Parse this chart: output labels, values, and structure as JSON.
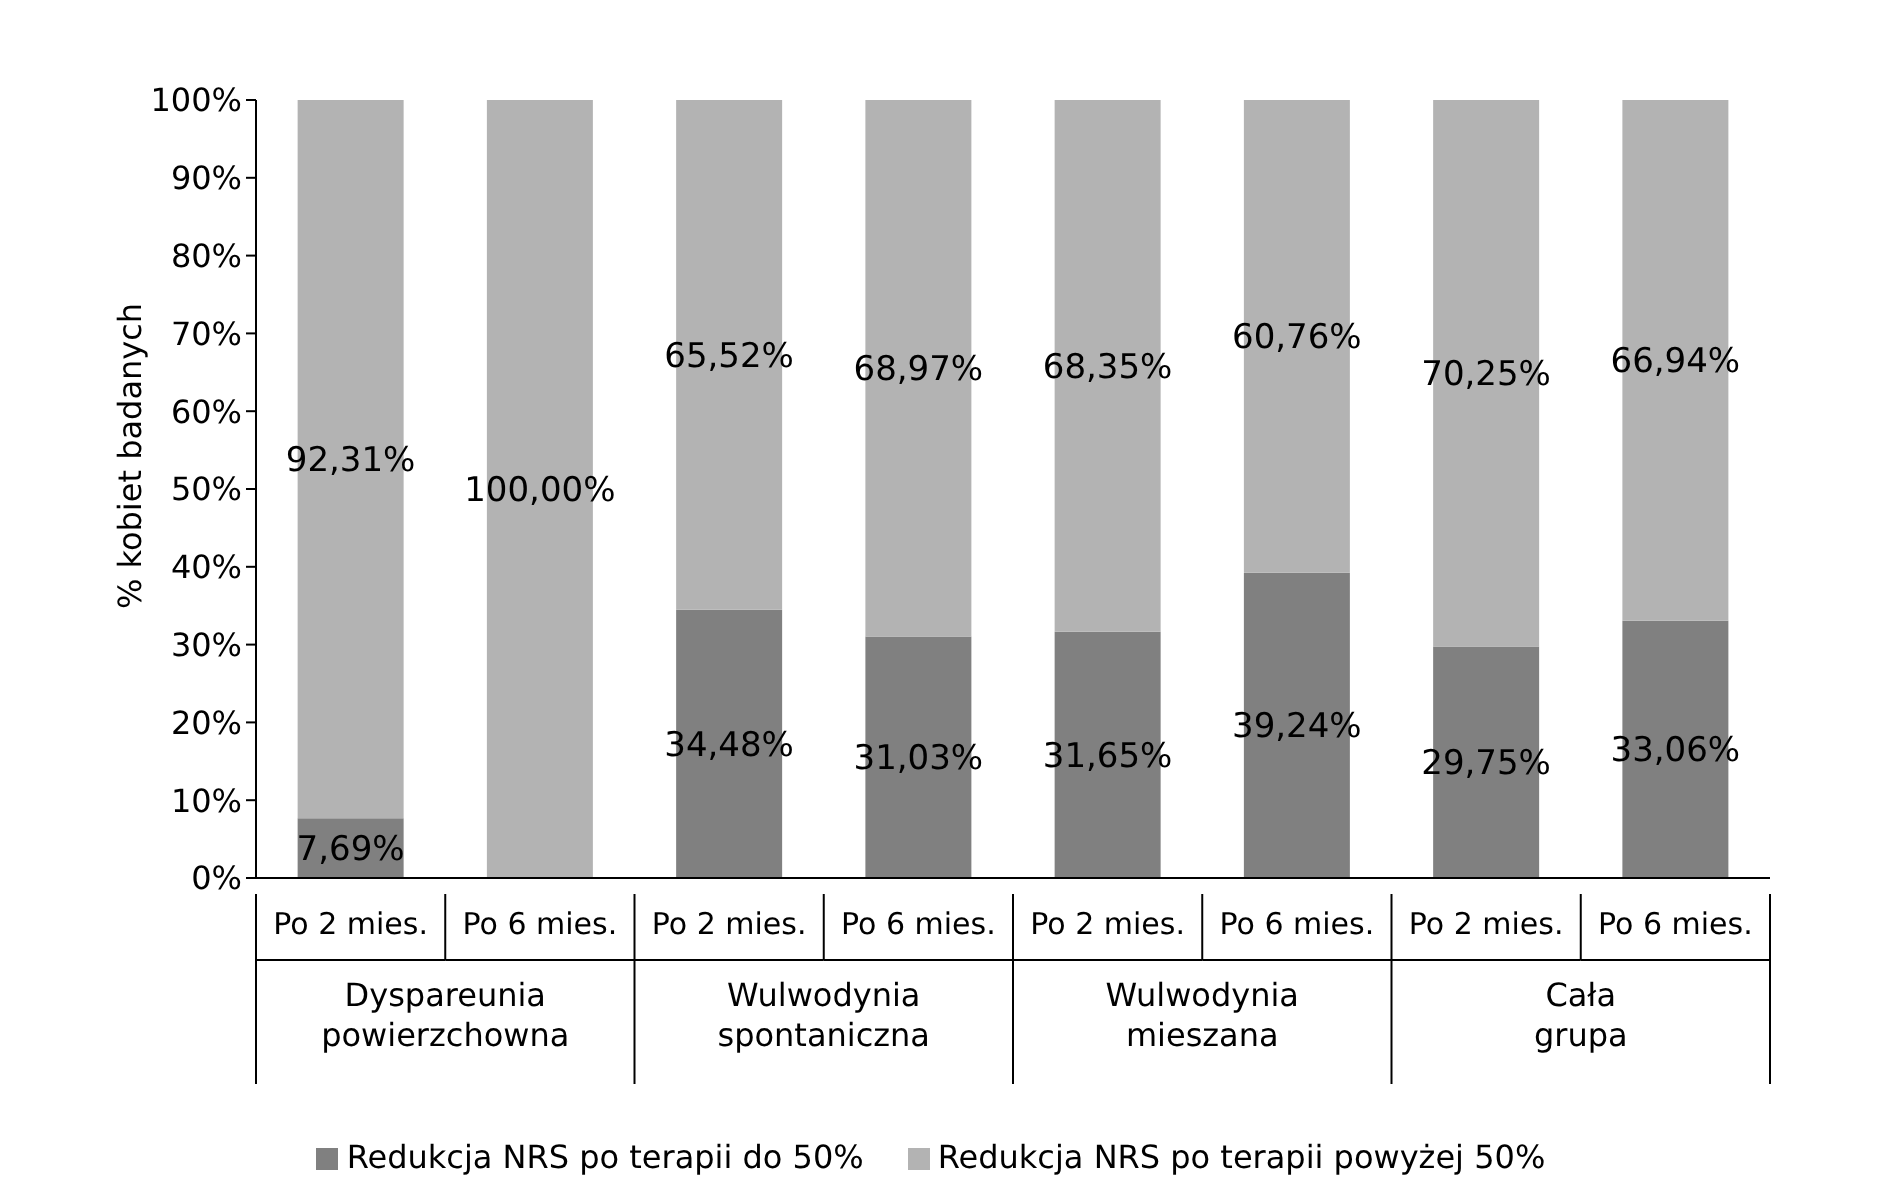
{
  "chart_data": {
    "type": "bar",
    "stacked": true,
    "ylabel": "% kobiet badanych",
    "categories": [
      "Po 2 mies.",
      "Po 6 mies.",
      "Po 2 mies.",
      "Po 6 mies.",
      "Po 2 mies.",
      "Po 6 mies.",
      "Po 2 mies.",
      "Po 6 mies."
    ],
    "annotations": [
      "Dyspareunia powierzchowna",
      "Wulwodynia spontaniczna",
      "Wulwodynia mieszana",
      "Cała grupa"
    ],
    "series": [
      {
        "name": "Redukcja NRS po terapii do 50%",
        "color": "#808080",
        "values": [
          7.69,
          0,
          34.48,
          31.03,
          31.65,
          39.24,
          29.75,
          33.06
        ],
        "value_labels": [
          "7,69%",
          null,
          "34,48%",
          "31,03%",
          "31,65%",
          "39,24%",
          "29,75%",
          "33,06%"
        ]
      },
      {
        "name": "Redukcja NRS po terapii powyżej 50%",
        "color": "#b3b3b3",
        "values": [
          92.31,
          100,
          65.52,
          68.97,
          68.35,
          60.76,
          70.25,
          66.94
        ],
        "value_labels": [
          "92,31%",
          "100,00%",
          "65,52%",
          "68,97%",
          "68,35%",
          "60,76%",
          "70,25%",
          "66,94%"
        ]
      }
    ],
    "ylim": [
      0,
      100
    ],
    "yticks": [
      {
        "value": 0,
        "label": "0%"
      },
      {
        "value": 10,
        "label": "10%"
      },
      {
        "value": 20,
        "label": "20%"
      },
      {
        "value": 30,
        "label": "30%"
      },
      {
        "value": 40,
        "label": "40%"
      },
      {
        "value": 50,
        "label": "50%"
      },
      {
        "value": 60,
        "label": "60%"
      },
      {
        "value": 70,
        "label": "70%"
      },
      {
        "value": 80,
        "label": "80%"
      },
      {
        "value": 90,
        "label": "90%"
      },
      {
        "value": 100,
        "label": "100%"
      }
    ],
    "grid": false,
    "legend": "bottom"
  }
}
